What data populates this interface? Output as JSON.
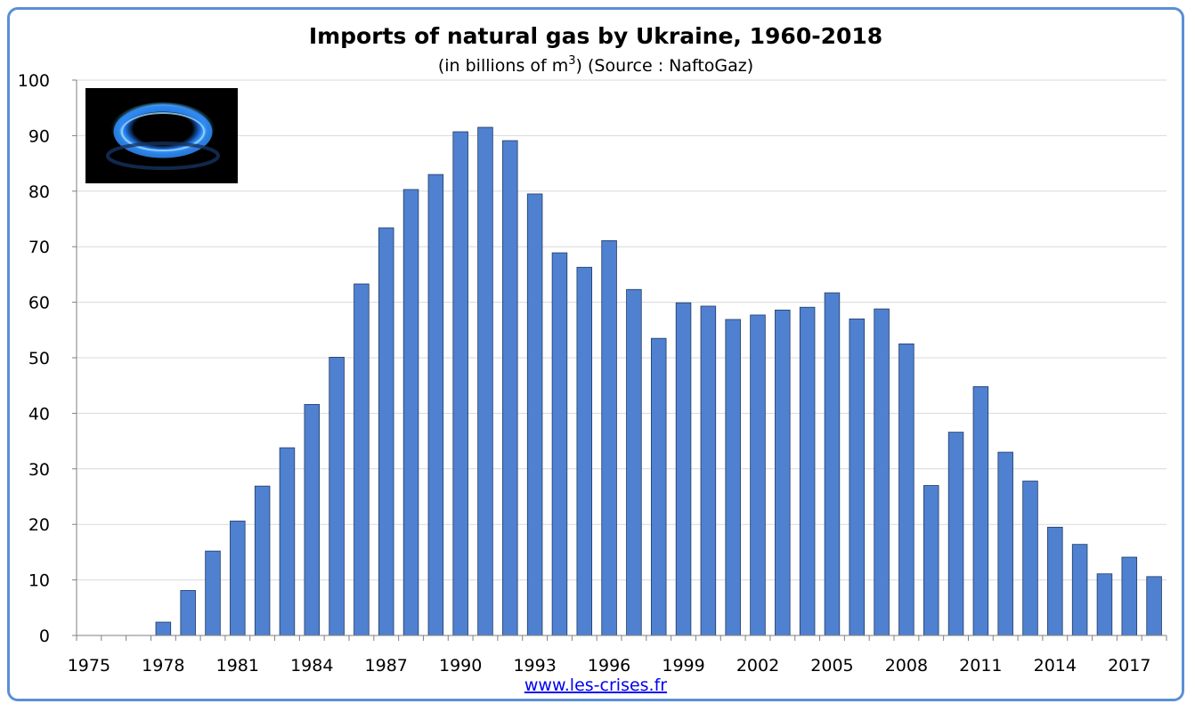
{
  "chart_data": {
    "type": "bar",
    "title": "Imports of natural gas by Ukraine, 1960-2018",
    "subtitle_pre": "(in billions of m",
    "subtitle_sup": "3",
    "subtitle_post": ") (Source : NaftoGaz)",
    "source_link": "www.les-crises.fr",
    "ylim": [
      0,
      100
    ],
    "y_ticks": [
      0,
      10,
      20,
      30,
      40,
      50,
      60,
      70,
      80,
      90,
      100
    ],
    "x_range": [
      1975,
      2018
    ],
    "x_tick_labels": [
      "1975",
      "1978",
      "1981",
      "1984",
      "1987",
      "1990",
      "1993",
      "1996",
      "1999",
      "2002",
      "2005",
      "2008",
      "2011",
      "2014",
      "2017"
    ],
    "grid": true,
    "bar_color": "#4f81d0",
    "bar_edge_color": "#1f3a66",
    "image": "gas-burner-flame",
    "years": [
      1975,
      1976,
      1977,
      1978,
      1979,
      1980,
      1981,
      1982,
      1983,
      1984,
      1985,
      1986,
      1987,
      1988,
      1989,
      1990,
      1991,
      1992,
      1993,
      1994,
      1995,
      1996,
      1997,
      1998,
      1999,
      2000,
      2001,
      2002,
      2003,
      2004,
      2005,
      2006,
      2007,
      2008,
      2009,
      2010,
      2011,
      2012,
      2013,
      2014,
      2015,
      2016,
      2017,
      2018
    ],
    "values": [
      0,
      0,
      0,
      2.4,
      8.1,
      15.2,
      20.6,
      26.9,
      33.8,
      41.6,
      50.1,
      63.3,
      73.4,
      80.3,
      83.0,
      90.7,
      91.5,
      89.1,
      79.5,
      68.9,
      66.3,
      71.1,
      62.3,
      53.5,
      59.9,
      59.3,
      56.9,
      57.7,
      58.6,
      59.1,
      61.7,
      57.0,
      58.8,
      52.5,
      27.0,
      36.6,
      44.8,
      33.0,
      27.8,
      19.5,
      16.4,
      11.1,
      14.1,
      10.6
    ]
  }
}
